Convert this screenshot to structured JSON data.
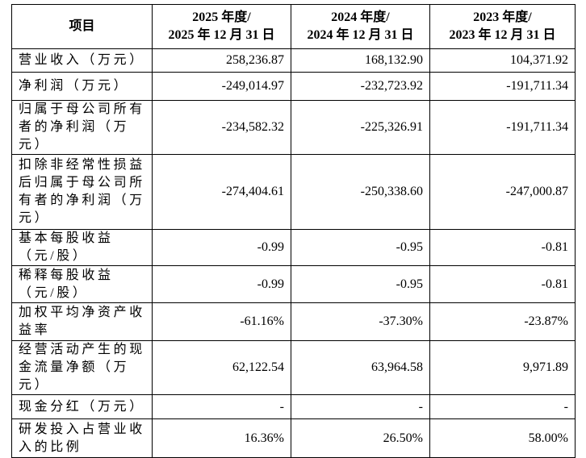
{
  "table": {
    "header": [
      "项目",
      [
        "2025 年度/",
        "2025 年 12 月 31 日"
      ],
      [
        "2024 年度/",
        "2024 年 12 月 31 日"
      ],
      [
        "2023 年度/",
        "2023 年 12 月 31 日"
      ]
    ],
    "rows": [
      [
        "营业收入（万元）",
        "258,236.87",
        "168,132.90",
        "104,371.92"
      ],
      [
        "净利润（万元）",
        "-249,014.97",
        "-232,723.92",
        "-191,711.34"
      ],
      [
        "归属于母公司所有者的净利润（万元）",
        "-234,582.32",
        "-225,326.91",
        "-191,711.34"
      ],
      [
        "扣除非经常性损益后归属于母公司所有者的净利润（万元）",
        "-274,404.61",
        "-250,338.60",
        "-247,000.87"
      ],
      [
        "基本每股收益（元/股）",
        "-0.99",
        "-0.95",
        "-0.81"
      ],
      [
        "稀释每股收益（元/股）",
        "-0.99",
        "-0.95",
        "-0.81"
      ],
      [
        "加权平均净资产收益率",
        "-61.16%",
        "-37.30%",
        "-23.87%"
      ],
      [
        "经营活动产生的现金流量净额（万元）",
        "62,122.54",
        "63,964.58",
        "9,971.89"
      ],
      [
        "现金分红（万元）",
        "-",
        "-",
        "-"
      ],
      [
        "研发投入占营业收入的比例",
        "16.36%",
        "26.50%",
        "58.00%"
      ]
    ]
  }
}
